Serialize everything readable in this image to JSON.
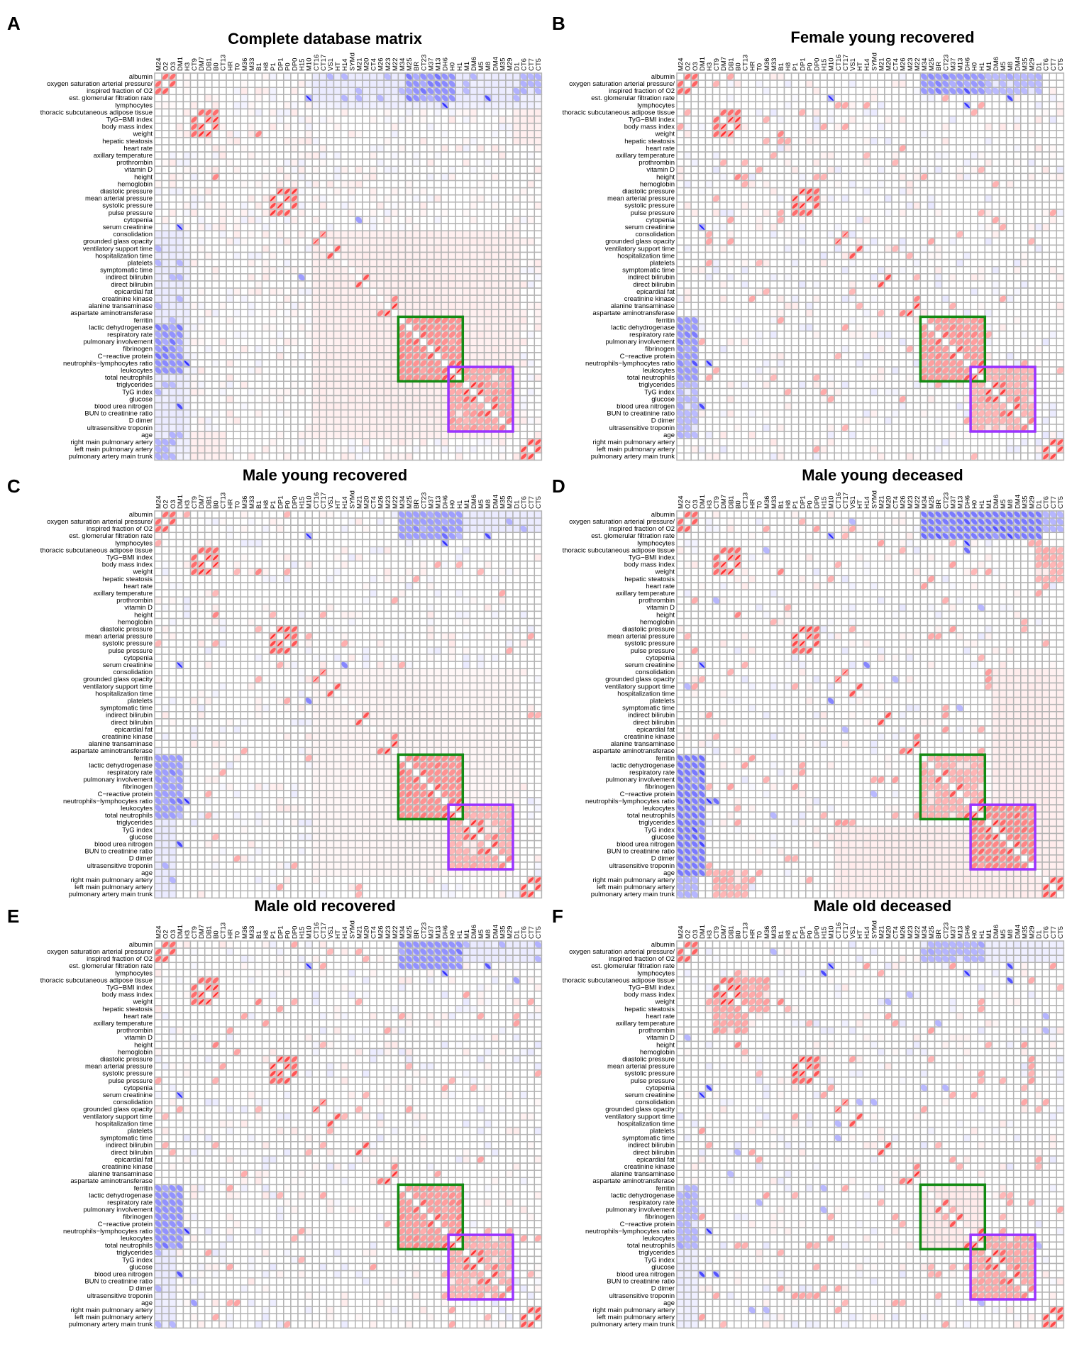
{
  "chart_data": {
    "type": "heatmap",
    "subtype": "correlation-matrix-ellipse",
    "value_range": [
      -1,
      1
    ],
    "colors": {
      "positive": "#ff0000",
      "negative": "#0000ff",
      "grid": "#b4b4b4",
      "green_box": "#138a13",
      "purple_box": "#9a33ff"
    },
    "column_codes": [
      "M24",
      "O2",
      "O3",
      "DM1",
      "H3",
      "CT9",
      "DM7",
      "DB1",
      "B0",
      "CT13",
      "HR",
      "T0",
      "M36",
      "M33",
      "B1",
      "H8",
      "P1",
      "DP1",
      "P0",
      "DP0",
      "H15",
      "M10",
      "CT16",
      "CT17",
      "VS1",
      "HT",
      "H14",
      "SYMd",
      "M21",
      "M20",
      "CT4",
      "M26",
      "M23",
      "M22",
      "M34",
      "M25",
      "BR",
      "CT23",
      "M37",
      "M13",
      "DH6",
      "H0",
      "H1",
      "M1",
      "DM6",
      "M5",
      "M8",
      "DM4",
      "M35",
      "M29",
      "D1",
      "CT6",
      "CT7",
      "CT5"
    ],
    "row_variables": [
      "albumin",
      "oxygen saturation arterial pressure/",
      "inspired fraction of O2",
      "est. glomerular filtration rate",
      "lymphocytes",
      "thoracic subcutaneous adipose tissue",
      "TyG−BMI index",
      "body mass index",
      "weight",
      "hepatic steatosis",
      "heart rate",
      "axillary temperature",
      "prothrombin",
      "vitamin D",
      "height",
      "hemoglobin",
      "diastolic pressure",
      "mean arterial pressure",
      "systolic pressure",
      "pulse pressure",
      "cytopenia",
      "serum creatinine",
      "consolidation",
      "grounded glass opacity",
      "ventilatory support time",
      "hospitalization time",
      "platelets",
      "symptomatic time",
      "indirect bilirubin",
      "direct bilirubin",
      "epicardial fat",
      "creatinine kinase",
      "alanine transaminase",
      "aspartate aminotransferase",
      "ferritin",
      "lactic dehydrogenase",
      "respiratory rate",
      "pulmonary involvement",
      "fibrinogen",
      "C−reactive protein",
      "neutrophils−lymphocytes ratio",
      "leukocytes",
      "total neutrophils",
      "triglycerides",
      "TyG index",
      "glucose",
      "blood urea nitrogen",
      "BUN to creatinine ratio",
      "D dimer",
      "ultrasensitive troponin",
      "age",
      "right main pulmonary artery",
      "left main pulmonary artery",
      "pulmonary artery main trunk"
    ],
    "highlight_boxes": [
      {
        "name": "green",
        "range": [
          34,
          42
        ]
      },
      {
        "name": "purple",
        "range": [
          41,
          49
        ]
      }
    ],
    "shared_pairs": [
      [
        0,
        1,
        0.6
      ],
      [
        0,
        2,
        0.6
      ],
      [
        1,
        2,
        0.65
      ],
      [
        3,
        21,
        -0.9
      ],
      [
        4,
        40,
        -0.85
      ],
      [
        3,
        46,
        -0.75
      ],
      [
        5,
        6,
        0.6
      ],
      [
        5,
        7,
        0.6
      ],
      [
        6,
        7,
        0.9
      ],
      [
        7,
        8,
        0.9
      ],
      [
        6,
        8,
        0.85
      ],
      [
        16,
        17,
        0.88
      ],
      [
        17,
        18,
        0.9
      ],
      [
        16,
        18,
        0.75
      ],
      [
        18,
        19,
        0.7
      ],
      [
        17,
        19,
        0.6
      ],
      [
        22,
        23,
        0.97
      ],
      [
        24,
        25,
        0.7
      ],
      [
        28,
        29,
        0.72
      ],
      [
        32,
        33,
        0.85
      ],
      [
        31,
        33,
        0.5
      ],
      [
        41,
        42,
        0.9
      ],
      [
        40,
        42,
        0.7
      ],
      [
        43,
        44,
        0.85
      ],
      [
        44,
        45,
        0.8
      ],
      [
        43,
        45,
        0.6
      ],
      [
        46,
        47,
        0.75
      ],
      [
        45,
        47,
        0.55
      ],
      [
        48,
        49,
        0.5
      ],
      [
        36,
        37,
        0.65
      ],
      [
        38,
        39,
        0.7
      ],
      [
        51,
        52,
        0.75
      ],
      [
        52,
        53,
        0.75
      ],
      [
        51,
        53,
        0.7
      ],
      [
        14,
        8,
        0.5
      ]
    ],
    "panels": [
      {
        "letter": "A",
        "title": "Complete database matrix",
        "noise": {
          "seed": 11,
          "density": 0.38,
          "amp": 0.22,
          "bias": 0.05
        },
        "blocks": [
          [
            22,
            50,
            22,
            50,
            0.18
          ],
          [
            0,
            2,
            34,
            53,
            -0.3
          ],
          [
            0,
            2,
            35,
            40,
            -0.55
          ],
          [
            3,
            4,
            22,
            53,
            -0.18
          ],
          [
            22,
            50,
            0,
            3,
            -0.25
          ],
          [
            35,
            41,
            0,
            3,
            -0.45
          ],
          [
            34,
            42,
            34,
            42,
            0.45
          ],
          [
            41,
            49,
            41,
            49,
            0.35
          ],
          [
            5,
            8,
            5,
            8,
            0.6
          ],
          [
            16,
            19,
            16,
            19,
            0.65
          ],
          [
            51,
            53,
            51,
            53,
            0.6
          ],
          [
            50,
            53,
            5,
            9,
            0.2
          ]
        ],
        "pairs": [
          [
            20,
            28,
            -0.4
          ],
          [
            26,
            0,
            -0.3
          ]
        ]
      },
      {
        "letter": "B",
        "title": "Female young recovered",
        "noise": {
          "seed": 23,
          "density": 0.2,
          "amp": 0.32,
          "bias": 0.04
        },
        "blocks": [
          [
            0,
            2,
            34,
            50,
            -0.28
          ],
          [
            0,
            2,
            36,
            40,
            -0.5
          ],
          [
            34,
            42,
            0,
            2,
            -0.42
          ],
          [
            34,
            42,
            34,
            42,
            0.4
          ],
          [
            41,
            49,
            41,
            49,
            0.3
          ],
          [
            51,
            53,
            51,
            53,
            0.55
          ],
          [
            5,
            8,
            5,
            8,
            0.6
          ],
          [
            16,
            19,
            16,
            19,
            0.6
          ]
        ],
        "pairs": [
          [
            40,
            2,
            -0.7
          ]
        ]
      },
      {
        "letter": "C",
        "title": "Male young recovered",
        "noise": {
          "seed": 37,
          "density": 0.22,
          "amp": 0.3,
          "bias": 0.05
        },
        "blocks": [
          [
            0,
            2,
            34,
            53,
            -0.25
          ],
          [
            34,
            42,
            0,
            3,
            -0.4
          ],
          [
            22,
            50,
            22,
            50,
            0.1
          ],
          [
            34,
            42,
            34,
            42,
            0.45
          ],
          [
            41,
            49,
            41,
            49,
            0.3
          ],
          [
            5,
            8,
            5,
            8,
            0.6
          ],
          [
            16,
            19,
            16,
            19,
            0.65
          ],
          [
            51,
            53,
            51,
            53,
            0.6
          ]
        ],
        "pairs": [
          [
            40,
            3,
            -0.6
          ],
          [
            26,
            21,
            -0.5
          ]
        ]
      },
      {
        "letter": "D",
        "title": "Male young deceased",
        "noise": {
          "seed": 41,
          "density": 0.22,
          "amp": 0.35,
          "bias": 0.05
        },
        "blocks": [
          [
            0,
            2,
            34,
            53,
            -0.3
          ],
          [
            34,
            50,
            0,
            3,
            -0.55
          ],
          [
            43,
            49,
            22,
            24,
            0.4
          ],
          [
            22,
            50,
            44,
            53,
            0.2
          ],
          [
            34,
            42,
            34,
            42,
            0.3
          ],
          [
            41,
            49,
            41,
            49,
            0.5
          ],
          [
            50,
            53,
            5,
            9,
            0.3
          ],
          [
            5,
            8,
            5,
            8,
            0.6
          ],
          [
            16,
            19,
            16,
            19,
            0.6
          ],
          [
            51,
            53,
            51,
            53,
            0.55
          ]
        ],
        "pairs": [
          [
            21,
            26,
            -0.5
          ],
          [
            40,
            5,
            -0.6
          ]
        ]
      },
      {
        "letter": "E",
        "title": "Male old recovered",
        "noise": {
          "seed": 53,
          "density": 0.22,
          "amp": 0.33,
          "bias": 0.05
        },
        "blocks": [
          [
            0,
            2,
            34,
            53,
            -0.25
          ],
          [
            34,
            42,
            0,
            3,
            -0.45
          ],
          [
            34,
            42,
            34,
            42,
            0.4
          ],
          [
            41,
            49,
            41,
            49,
            0.3
          ],
          [
            5,
            8,
            5,
            8,
            0.6
          ],
          [
            16,
            19,
            16,
            19,
            0.6
          ],
          [
            51,
            53,
            51,
            53,
            0.55
          ]
        ],
        "pairs": [
          [
            46,
            3,
            -0.7
          ],
          [
            50,
            5,
            -0.4
          ]
        ]
      },
      {
        "letter": "F",
        "title": "Male old deceased",
        "noise": {
          "seed": 67,
          "density": 0.2,
          "amp": 0.35,
          "bias": 0.04
        },
        "blocks": [
          [
            0,
            2,
            34,
            53,
            -0.2
          ],
          [
            34,
            42,
            0,
            2,
            -0.3
          ],
          [
            34,
            42,
            34,
            42,
            0.25
          ],
          [
            41,
            49,
            41,
            49,
            0.35
          ],
          [
            5,
            9,
            5,
            12,
            0.35
          ],
          [
            16,
            19,
            16,
            19,
            0.6
          ],
          [
            51,
            53,
            51,
            53,
            0.5
          ]
        ],
        "pairs": [
          [
            20,
            4,
            -0.75
          ],
          [
            46,
            5,
            -0.7
          ]
        ]
      }
    ]
  }
}
